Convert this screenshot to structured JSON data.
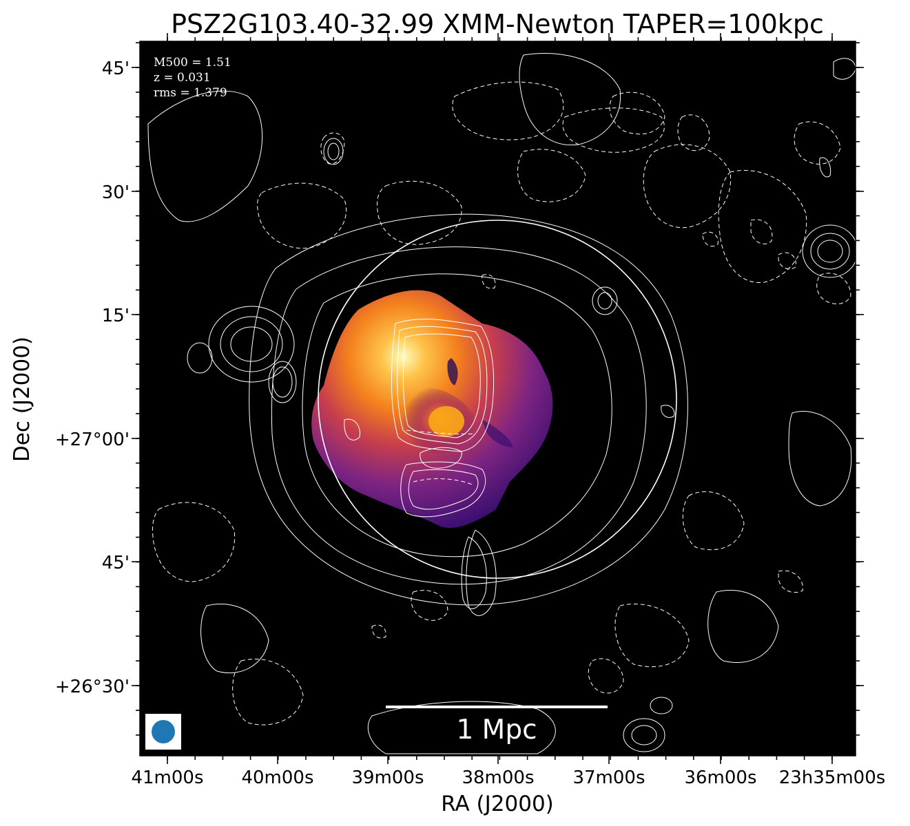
{
  "title": "PSZ2G103.40-32.99 XMM-Newton TAPER=100kpc",
  "xlabel": "RA (J2000)",
  "ylabel": "Dec (J2000)",
  "x_ticks": [
    "41m00s",
    "40m00s",
    "39m00s",
    "38m00s",
    "37m00s",
    "36m00s",
    "23h35m00s"
  ],
  "y_ticks": [
    "45'",
    "30'",
    "15'",
    "+27°00'",
    "45'",
    "+26°30'"
  ],
  "info": {
    "m500": "M500 = 1.51",
    "z": "z = 0.031",
    "rms": "rms = 1.379"
  },
  "scalebar_label": "1 Mpc",
  "colors": {
    "background": "#000000",
    "contour": "#ffffff",
    "beam": "#1f77b4",
    "colormap": "inferno"
  }
}
